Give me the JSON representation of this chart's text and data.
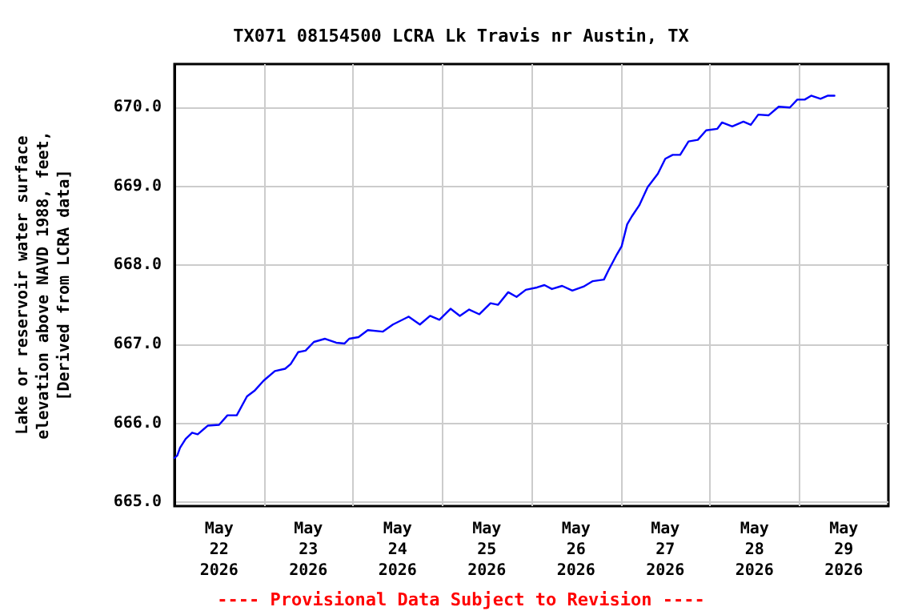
{
  "chart_data": {
    "type": "line",
    "title": "TX071 08154500 LCRA Lk Travis nr Austin, TX",
    "ylabel": "Lake or reservoir water surface\nelevation above NAVD 1988, feet,\n[Derived from LCRA data]",
    "annotations": [
      "---- Provisional Data Subject to Revision ----"
    ],
    "x": [
      "2026-05-22T00:00",
      "2026-05-22T00:45",
      "2026-05-22T01:30",
      "2026-05-22T03:00",
      "2026-05-22T04:45",
      "2026-05-22T06:15",
      "2026-05-22T09:00",
      "2026-05-22T12:00",
      "2026-05-22T14:15",
      "2026-05-22T16:45",
      "2026-05-22T19:30",
      "2026-05-22T21:30",
      "2026-05-23T00:00",
      "2026-05-23T03:00",
      "2026-05-23T05:45",
      "2026-05-23T07:15",
      "2026-05-23T09:15",
      "2026-05-23T11:15",
      "2026-05-23T13:30",
      "2026-05-23T16:30",
      "2026-05-23T19:30",
      "2026-05-23T21:45",
      "2026-05-23T23:00",
      "2026-05-24T01:30",
      "2026-05-24T04:00",
      "2026-05-24T08:00",
      "2026-05-24T10:45",
      "2026-05-24T15:00",
      "2026-05-24T18:00",
      "2026-05-24T20:45",
      "2026-05-24T23:15",
      "2026-05-25T02:15",
      "2026-05-25T04:45",
      "2026-05-25T07:15",
      "2026-05-25T10:00",
      "2026-05-25T13:00",
      "2026-05-25T15:00",
      "2026-05-25T17:45",
      "2026-05-25T20:00",
      "2026-05-25T22:30",
      "2026-05-26T01:30",
      "2026-05-26T03:30",
      "2026-05-26T05:30",
      "2026-05-26T08:15",
      "2026-05-26T11:00",
      "2026-05-26T14:00",
      "2026-05-26T16:30",
      "2026-05-26T19:30",
      "2026-05-26T20:45",
      "2026-05-26T23:00",
      "2026-05-27T00:15",
      "2026-05-27T01:45",
      "2026-05-27T03:00",
      "2026-05-27T05:00",
      "2026-05-27T07:15",
      "2026-05-27T10:00",
      "2026-05-27T12:00",
      "2026-05-27T14:00",
      "2026-05-27T16:00",
      "2026-05-27T18:15",
      "2026-05-27T20:45",
      "2026-05-27T23:00",
      "2026-05-28T02:00",
      "2026-05-28T03:15",
      "2026-05-28T06:00",
      "2026-05-28T09:00",
      "2026-05-28T11:00",
      "2026-05-28T13:00",
      "2026-05-28T15:45",
      "2026-05-28T18:30",
      "2026-05-28T21:30",
      "2026-05-28T23:30",
      "2026-05-29T01:30",
      "2026-05-29T03:15",
      "2026-05-29T05:45",
      "2026-05-29T07:45",
      "2026-05-29T09:30"
    ],
    "series": [
      {
        "color": "#0000ff",
        "values": [
          665.56,
          665.59,
          665.69,
          665.8,
          665.88,
          665.86,
          665.97,
          665.98,
          666.1,
          666.1,
          666.34,
          666.41,
          666.54,
          666.66,
          666.69,
          666.75,
          666.9,
          666.92,
          667.03,
          667.07,
          667.02,
          667.01,
          667.07,
          667.09,
          667.18,
          667.16,
          667.25,
          667.35,
          667.25,
          667.36,
          667.31,
          667.45,
          667.36,
          667.44,
          667.38,
          667.52,
          667.5,
          667.66,
          667.6,
          667.69,
          667.72,
          667.75,
          667.7,
          667.74,
          667.68,
          667.73,
          667.8,
          667.82,
          667.94,
          668.14,
          668.24,
          668.52,
          668.62,
          668.76,
          668.99,
          669.16,
          669.35,
          669.4,
          669.4,
          669.57,
          669.59,
          669.71,
          669.73,
          669.81,
          669.76,
          669.82,
          669.78,
          669.91,
          669.9,
          670.01,
          670.0,
          670.1,
          670.1,
          670.15,
          670.11,
          670.15,
          670.15
        ]
      }
    ],
    "xlim": [
      "2026-05-22T00:00",
      "2026-05-30T00:00"
    ],
    "xticks": [
      {
        "value": "2026-05-22T12:00",
        "label": "May\n22\n2026"
      },
      {
        "value": "2026-05-23T12:00",
        "label": "May\n23\n2026"
      },
      {
        "value": "2026-05-24T12:00",
        "label": "May\n24\n2026"
      },
      {
        "value": "2026-05-25T12:00",
        "label": "May\n25\n2026"
      },
      {
        "value": "2026-05-26T12:00",
        "label": "May\n26\n2026"
      },
      {
        "value": "2026-05-27T12:00",
        "label": "May\n27\n2026"
      },
      {
        "value": "2026-05-28T12:00",
        "label": "May\n28\n2026"
      },
      {
        "value": "2026-05-29T12:00",
        "label": "May\n29\n2026"
      },
      {
        "value": "2026-05-23T00:00",
        "label": null
      },
      {
        "value": "2026-05-24T00:00",
        "label": null
      },
      {
        "value": "2026-05-25T00:00",
        "label": null
      },
      {
        "value": "2026-05-26T00:00",
        "label": null
      },
      {
        "value": "2026-05-27T00:00",
        "label": null
      },
      {
        "value": "2026-05-28T00:00",
        "label": null
      },
      {
        "value": "2026-05-29T00:00",
        "label": null
      }
    ],
    "ylim": [
      664.95,
      670.55
    ],
    "yticks": [
      {
        "value": 665,
        "label": "665.0"
      },
      {
        "value": 666,
        "label": "666.0"
      },
      {
        "value": 667,
        "label": "667.0"
      },
      {
        "value": 668,
        "label": "668.0"
      },
      {
        "value": 669,
        "label": "669.0"
      },
      {
        "value": 670,
        "label": "670.0"
      }
    ],
    "grid": true,
    "marker": "none",
    "line_style": "solid"
  }
}
